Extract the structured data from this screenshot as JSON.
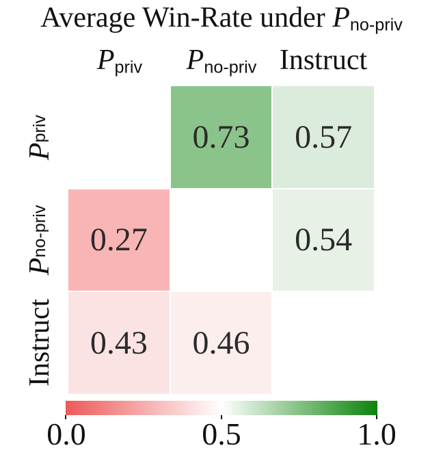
{
  "title": {
    "prefix": "Average Win-Rate under ",
    "symbol": "P",
    "subscript": "no-priv"
  },
  "axis": {
    "columns": [
      {
        "symbol": "P",
        "subscript": "priv",
        "text": ""
      },
      {
        "symbol": "P",
        "subscript": "no-priv",
        "text": ""
      },
      {
        "symbol": "",
        "subscript": "",
        "text": "Instruct"
      }
    ],
    "rows": [
      {
        "symbol": "P",
        "subscript": "priv",
        "text": ""
      },
      {
        "symbol": "P",
        "subscript": "no-priv",
        "text": ""
      },
      {
        "symbol": "",
        "subscript": "",
        "text": "Instruct"
      }
    ]
  },
  "matrix": {
    "cells": [
      [
        {
          "v": "",
          "bg": "#ffffff"
        },
        {
          "v": "0.73",
          "bg": "#8bc48b"
        },
        {
          "v": "0.57",
          "bg": "#dcecdc"
        }
      ],
      [
        {
          "v": "0.27",
          "bg": "#f9b5b5"
        },
        {
          "v": "",
          "bg": "#ffffff"
        },
        {
          "v": "0.54",
          "bg": "#e7f1e6"
        }
      ],
      [
        {
          "v": "0.43",
          "bg": "#fce3e3"
        },
        {
          "v": "0.46",
          "bg": "#fdeeee"
        },
        {
          "v": "",
          "bg": "#ffffff"
        }
      ]
    ]
  },
  "colorbar": {
    "low_color": "#ec5a59",
    "mid_color": "#ffffff",
    "high_color": "#0a830a",
    "tick_labels": [
      "0.0",
      "0.5",
      "1.0"
    ]
  },
  "chart_data": {
    "type": "heatmap",
    "title": "Average Win-Rate under P_no-priv",
    "x_categories": [
      "P_priv",
      "P_no-priv",
      "Instruct"
    ],
    "y_categories": [
      "P_priv",
      "P_no-priv",
      "Instruct"
    ],
    "values": [
      [
        null,
        0.73,
        0.57
      ],
      [
        0.27,
        null,
        0.54
      ],
      [
        0.43,
        0.46,
        null
      ]
    ],
    "value_range": [
      0.0,
      1.0
    ],
    "colormap": "red-white-green",
    "colorbar": {
      "orientation": "horizontal",
      "position": "bottom",
      "ticks": [
        0.0,
        0.5,
        1.0
      ]
    },
    "notes": "diagonal cells are blank (white)"
  }
}
